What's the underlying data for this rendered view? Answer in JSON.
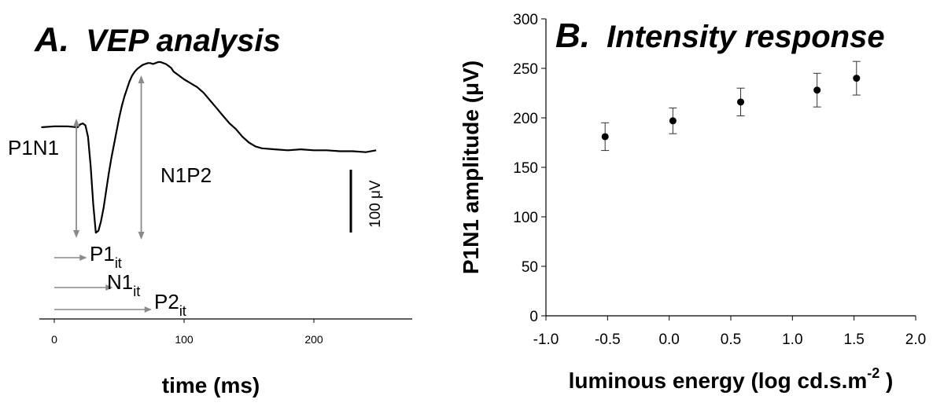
{
  "chart_data": [
    {
      "type": "line",
      "panel_letter": "A.",
      "title": "VEP analysis",
      "xlabel": "time (ms)",
      "xlim": [
        -10,
        280
      ],
      "x_ticks": [
        "0",
        "100",
        "200"
      ],
      "x_tick_values": [
        0,
        100,
        200
      ],
      "ylim": [
        -100,
        100
      ],
      "series": [
        {
          "x": [
            -10,
            0,
            10,
            18,
            20,
            22,
            24,
            26,
            28,
            30,
            32,
            34,
            36,
            38,
            40,
            42,
            44,
            46,
            48,
            50,
            52,
            54,
            56,
            58,
            60,
            62,
            64,
            66,
            68,
            70,
            72,
            74,
            76,
            78,
            80,
            82,
            84,
            86,
            88,
            90,
            92,
            95,
            100,
            105,
            110,
            115,
            120,
            125,
            130,
            135,
            140,
            145,
            150,
            155,
            160,
            170,
            180,
            190,
            200,
            210,
            220,
            230,
            240,
            248
          ],
          "y": [
            0,
            1,
            1,
            0,
            3,
            4,
            2,
            -10,
            -40,
            -80,
            -110,
            -108,
            -98,
            -84,
            -66,
            -48,
            -32,
            -18,
            -4,
            10,
            22,
            32,
            40,
            48,
            54,
            58,
            61,
            63,
            65,
            66,
            67,
            67,
            66,
            67,
            68,
            68,
            67,
            66,
            64,
            62,
            58,
            55,
            50,
            46,
            42,
            36,
            28,
            20,
            12,
            4,
            -2,
            -10,
            -16,
            -20,
            -22,
            -23,
            -24,
            -23,
            -24,
            -24,
            -25,
            -25,
            -26,
            -24
          ]
        }
      ],
      "annotations": {
        "p1n1_label": "P1N1",
        "n1p2_label": "N1P2",
        "p1_base": "P1",
        "p1_sub": "it",
        "n1_base": "N1",
        "n1_sub": "it",
        "p2_base": "P2",
        "p2_sub": "it",
        "scale_bar_label": "100 μV",
        "scale_bar_value_uv": 100
      },
      "interval_arrows_ms": {
        "p1_it": [
          0,
          25
        ],
        "n1_it": [
          0,
          45
        ],
        "p2_it": [
          0,
          75
        ]
      },
      "amplitude_arrows_ms": {
        "p1n1_at": 17,
        "n1p2_at": 67
      },
      "colors": {
        "trace": "#000000",
        "arrows": "#8a8a8a"
      }
    },
    {
      "type": "scatter",
      "panel_letter": "B.",
      "title": "Intensity response",
      "xlabel_main": "luminous energy (log cd.s.m",
      "xlabel_sup": "-2",
      "xlabel_end": " )",
      "ylabel": "P1N1 amplitude (μV)",
      "xlim": [
        -1.0,
        2.0
      ],
      "ylim": [
        0,
        300
      ],
      "x_ticks": [
        "-1.0",
        "-0.5",
        "0.0",
        "0.5",
        "1.0",
        "1.5",
        "2.0"
      ],
      "x_tick_values": [
        -1.0,
        -0.5,
        0.0,
        0.5,
        1.0,
        1.5,
        2.0
      ],
      "y_ticks": [
        "0",
        "50",
        "100",
        "150",
        "200",
        "250",
        "300"
      ],
      "y_tick_values": [
        0,
        50,
        100,
        150,
        200,
        250,
        300
      ],
      "points": [
        {
          "x": -0.52,
          "y": 181,
          "err": 14
        },
        {
          "x": 0.03,
          "y": 197,
          "err": 13
        },
        {
          "x": 0.58,
          "y": 216,
          "err": 14
        },
        {
          "x": 1.2,
          "y": 228,
          "err": 17
        },
        {
          "x": 1.52,
          "y": 240,
          "err": 17
        }
      ],
      "grid": false
    }
  ]
}
